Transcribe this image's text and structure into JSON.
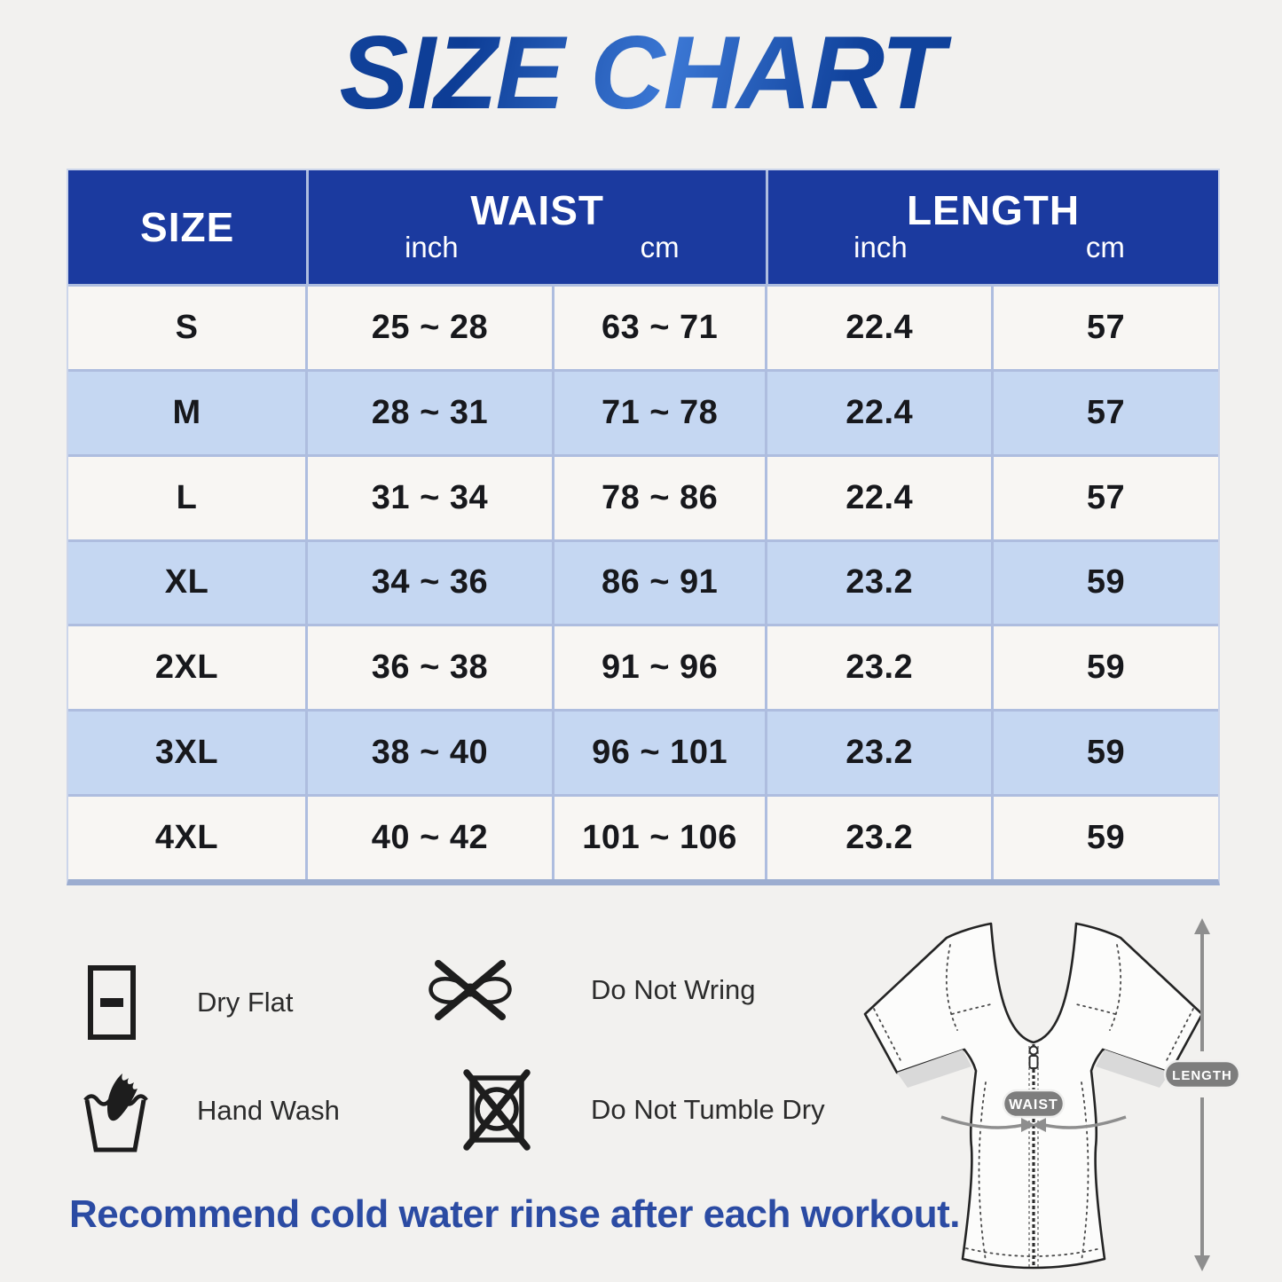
{
  "title": "SIZE CHART",
  "table": {
    "header": {
      "size": "SIZE",
      "waist": "WAIST",
      "length": "LENGTH",
      "unit_inch": "inch",
      "unit_cm": "cm"
    },
    "rows": [
      {
        "size": "S",
        "waist_inch": "25 ~ 28",
        "waist_cm": "63 ~ 71",
        "length_inch": "22.4",
        "length_cm": "57"
      },
      {
        "size": "M",
        "waist_inch": "28 ~ 31",
        "waist_cm": "71 ~ 78",
        "length_inch": "22.4",
        "length_cm": "57"
      },
      {
        "size": "L",
        "waist_inch": "31 ~ 34",
        "waist_cm": "78 ~ 86",
        "length_inch": "22.4",
        "length_cm": "57"
      },
      {
        "size": "XL",
        "waist_inch": "34 ~ 36",
        "waist_cm": "86 ~ 91",
        "length_inch": "23.2",
        "length_cm": "59"
      },
      {
        "size": "2XL",
        "waist_inch": "36 ~ 38",
        "waist_cm": "91 ~ 96",
        "length_inch": "23.2",
        "length_cm": "59"
      },
      {
        "size": "3XL",
        "waist_inch": "38 ~ 40",
        "waist_cm": "96 ~ 101",
        "length_inch": "23.2",
        "length_cm": "59"
      },
      {
        "size": "4XL",
        "waist_inch": "40 ~ 42",
        "waist_cm": "101 ~ 106",
        "length_inch": "23.2",
        "length_cm": "59"
      }
    ]
  },
  "care": {
    "items": [
      {
        "icon": "dry-flat-icon",
        "label": "Dry Flat"
      },
      {
        "icon": "do-not-wring-icon",
        "label": "Do Not Wring"
      },
      {
        "icon": "hand-wash-icon",
        "label": "Hand Wash"
      },
      {
        "icon": "do-not-tumble-dry-icon",
        "label": "Do Not Tumble Dry"
      }
    ]
  },
  "diagram": {
    "waist_label": "WAIST",
    "length_label": "LENGTH"
  },
  "note": {
    "text": "Recommend cold water rinse after each workout."
  },
  "colors": {
    "title_blue": "#1450ab",
    "header_blue": "#1b3a9f",
    "row_alt_blue": "#c5d7f2",
    "row_white": "#f8f6f3",
    "grid_line": "#aebddf",
    "note_blue": "#2b4ba3",
    "pill_gray": "#7d7d7d",
    "arrow_gray": "#8e8e8e"
  }
}
